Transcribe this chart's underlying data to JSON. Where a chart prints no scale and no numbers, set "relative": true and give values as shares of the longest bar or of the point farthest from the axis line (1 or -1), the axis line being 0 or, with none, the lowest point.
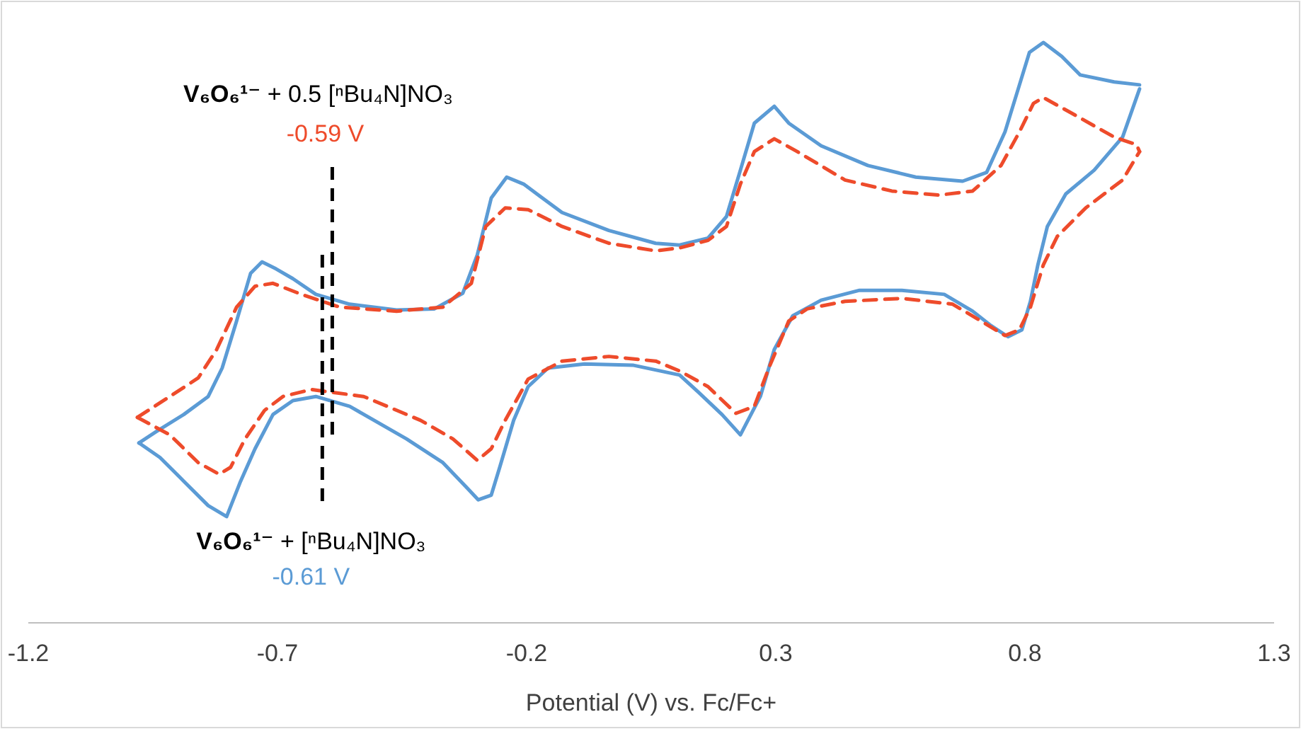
{
  "chart_data": {
    "type": "line",
    "relative": true,
    "xlabel": "Potential (V) vs. Fc/Fc+",
    "xlim": [
      -1.2,
      1.3
    ],
    "xticks": [
      -1.2,
      -0.7,
      -0.2,
      0.3,
      0.8,
      1.3
    ],
    "grid": false,
    "legend": false,
    "marker": "none",
    "series": [
      {
        "color": "#5b9bd5",
        "line_style": "solid",
        "x": [
          -0.978,
          -0.944,
          -0.888,
          -0.839,
          -0.811,
          -0.782,
          -0.754,
          -0.731,
          -0.703,
          -0.669,
          -0.623,
          -0.555,
          -0.461,
          -0.385,
          -0.328,
          -0.299,
          -0.271,
          -0.24,
          -0.206,
          -0.129,
          -0.035,
          0.059,
          0.107,
          0.164,
          0.201,
          0.229,
          0.257,
          0.297,
          0.326,
          0.391,
          0.485,
          0.581,
          0.675,
          0.723,
          0.76,
          0.789,
          0.809,
          0.837,
          0.874,
          0.911,
          0.979,
          1.03
        ],
        "values": [
          0.31,
          0.329,
          0.359,
          0.39,
          0.439,
          0.52,
          0.602,
          0.622,
          0.61,
          0.593,
          0.566,
          0.549,
          0.539,
          0.541,
          0.568,
          0.634,
          0.732,
          0.768,
          0.756,
          0.707,
          0.676,
          0.654,
          0.651,
          0.663,
          0.7,
          0.78,
          0.861,
          0.89,
          0.861,
          0.822,
          0.788,
          0.768,
          0.761,
          0.776,
          0.846,
          0.927,
          0.983,
          1.0,
          0.976,
          0.944,
          0.932,
          0.927
        ]
      },
      {
        "color": "#5b9bd5",
        "line_style": "solid",
        "x": [
          -0.978,
          -0.936,
          -0.888,
          -0.839,
          -0.802,
          -0.774,
          -0.745,
          -0.709,
          -0.669,
          -0.623,
          -0.555,
          -0.441,
          -0.368,
          -0.319,
          -0.297,
          -0.271,
          -0.254,
          -0.226,
          -0.197,
          -0.157,
          -0.084,
          0.013,
          0.107,
          0.144,
          0.192,
          0.229,
          0.269,
          0.297,
          0.334,
          0.391,
          0.468,
          0.553,
          0.638,
          0.695,
          0.732,
          0.766,
          0.794,
          0.811,
          0.826,
          0.845,
          0.882,
          0.939,
          0.996,
          1.03
        ],
        "values": [
          0.31,
          0.285,
          0.244,
          0.202,
          0.183,
          0.244,
          0.3,
          0.359,
          0.383,
          0.39,
          0.373,
          0.317,
          0.276,
          0.232,
          0.212,
          0.22,
          0.268,
          0.349,
          0.407,
          0.439,
          0.446,
          0.444,
          0.427,
          0.398,
          0.359,
          0.324,
          0.39,
          0.471,
          0.529,
          0.556,
          0.573,
          0.573,
          0.566,
          0.537,
          0.512,
          0.493,
          0.505,
          0.554,
          0.617,
          0.683,
          0.739,
          0.78,
          0.837,
          0.92
        ]
      },
      {
        "color": "#ee4b2b",
        "line_style": "dashed",
        "x": [
          -0.981,
          -0.916,
          -0.859,
          -0.822,
          -0.782,
          -0.745,
          -0.709,
          -0.652,
          -0.575,
          -0.461,
          -0.368,
          -0.311,
          -0.282,
          -0.243,
          -0.197,
          -0.129,
          -0.035,
          0.059,
          0.107,
          0.164,
          0.201,
          0.229,
          0.257,
          0.297,
          0.343,
          0.439,
          0.533,
          0.627,
          0.695,
          0.752,
          0.789,
          0.817,
          0.837,
          0.894,
          0.979,
          1.024,
          1.03
        ],
        "values": [
          0.354,
          0.39,
          0.422,
          0.471,
          0.544,
          0.58,
          0.585,
          0.566,
          0.544,
          0.537,
          0.544,
          0.585,
          0.683,
          0.715,
          0.712,
          0.683,
          0.654,
          0.641,
          0.646,
          0.659,
          0.683,
          0.756,
          0.812,
          0.834,
          0.812,
          0.763,
          0.744,
          0.737,
          0.744,
          0.788,
          0.846,
          0.895,
          0.905,
          0.878,
          0.837,
          0.824,
          0.812
        ]
      },
      {
        "color": "#ee4b2b",
        "line_style": "dashed",
        "x": [
          -0.981,
          -0.916,
          -0.859,
          -0.817,
          -0.794,
          -0.765,
          -0.726,
          -0.689,
          -0.632,
          -0.527,
          -0.413,
          -0.348,
          -0.299,
          -0.271,
          -0.243,
          -0.197,
          -0.129,
          -0.035,
          0.059,
          0.107,
          0.164,
          0.22,
          0.257,
          0.286,
          0.326,
          0.363,
          0.439,
          0.553,
          0.655,
          0.712,
          0.76,
          0.789,
          0.811,
          0.837,
          0.865,
          0.922,
          0.996,
          1.03
        ],
        "values": [
          0.354,
          0.324,
          0.276,
          0.256,
          0.268,
          0.317,
          0.366,
          0.39,
          0.402,
          0.39,
          0.349,
          0.317,
          0.28,
          0.3,
          0.349,
          0.42,
          0.451,
          0.459,
          0.451,
          0.434,
          0.407,
          0.361,
          0.373,
          0.439,
          0.52,
          0.541,
          0.554,
          0.559,
          0.549,
          0.52,
          0.495,
          0.505,
          0.544,
          0.617,
          0.666,
          0.715,
          0.763,
          0.812
        ]
      }
    ],
    "ref_lines": [
      {
        "axis": "x",
        "value": -0.61,
        "label": "-0.61 V",
        "color": "#000000",
        "line_style": "dashed"
      },
      {
        "axis": "x",
        "value": -0.59,
        "label": "-0.59 V",
        "color": "#000000",
        "line_style": "dashed"
      }
    ],
    "annotations": [
      "V₆O₆¹⁻ + [ⁿBu₄N]NO₃",
      "V₆O₆¹⁻ + 0.5 [ⁿBu₄N]NO₃"
    ]
  }
}
